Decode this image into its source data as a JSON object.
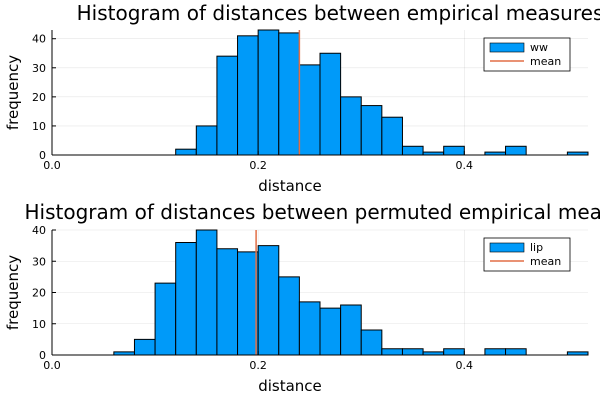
{
  "chart_data": [
    {
      "type": "bar",
      "title": "Histogram of distances between empirical measures",
      "xlabel": "distance",
      "ylabel": "frequency",
      "xlim": [
        0,
        0.52
      ],
      "ylim": [
        0,
        43
      ],
      "xticks": [
        0.0,
        0.2,
        0.4
      ],
      "xtick_labels": [
        "0.0",
        "0.2",
        "0.4"
      ],
      "yticks": [
        0,
        10,
        20,
        30,
        40
      ],
      "grid": true,
      "legend_position": "top-right",
      "bin_edges": [
        0.12,
        0.14,
        0.16,
        0.18,
        0.2,
        0.22,
        0.24,
        0.26,
        0.28,
        0.3,
        0.32,
        0.34,
        0.36,
        0.38,
        0.4,
        0.42,
        0.44,
        0.46,
        0.48,
        0.5,
        0.52
      ],
      "counts": [
        2,
        10,
        34,
        41,
        43,
        42,
        31,
        35,
        20,
        17,
        13,
        3,
        1,
        3,
        0,
        1,
        3,
        0,
        0,
        1
      ],
      "mean": 0.24,
      "series": [
        {
          "name": "ww",
          "color": "#009AF9"
        },
        {
          "name": "mean",
          "color": "#E26F46"
        }
      ]
    },
    {
      "type": "bar",
      "title": "Histogram of distances between permuted empirical measures",
      "xlabel": "distance",
      "ylabel": "frequency",
      "xlim": [
        0,
        0.52
      ],
      "ylim": [
        0,
        40
      ],
      "xticks": [
        0.0,
        0.2,
        0.4
      ],
      "xtick_labels": [
        "0.0",
        "0.2",
        "0.4"
      ],
      "yticks": [
        0,
        10,
        20,
        30,
        40
      ],
      "grid": true,
      "legend_position": "top-right",
      "bin_edges": [
        0.06,
        0.08,
        0.1,
        0.12,
        0.14,
        0.16,
        0.18,
        0.2,
        0.22,
        0.24,
        0.26,
        0.28,
        0.3,
        0.32,
        0.34,
        0.36,
        0.38,
        0.4,
        0.42,
        0.44,
        0.46,
        0.48,
        0.5,
        0.52
      ],
      "counts": [
        1,
        5,
        23,
        36,
        40,
        34,
        33,
        35,
        25,
        17,
        15,
        16,
        8,
        2,
        2,
        1,
        2,
        0,
        2,
        2,
        0,
        0,
        1
      ],
      "mean": 0.198,
      "series": [
        {
          "name": "lip",
          "color": "#009AF9"
        },
        {
          "name": "mean",
          "color": "#E26F46"
        }
      ]
    }
  ]
}
